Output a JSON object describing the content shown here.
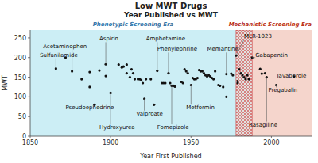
{
  "chart_data": {
    "type": "scatter",
    "title": "Low MWT Drugs",
    "subtitle": "Year Published vs MWT",
    "x_label": "Year First Published",
    "y_label": "MWT",
    "xlim": [
      1850,
      2025
    ],
    "ylim": [
      0,
      270
    ],
    "xticks": [
      1850,
      1900,
      1950,
      2000
    ],
    "yticks": [
      0,
      50,
      100,
      150,
      200,
      250
    ],
    "grid": false,
    "color": "#111111",
    "x": [
      1866,
      1872,
      1876,
      1882,
      1887,
      1887,
      1890,
      1893,
      1897,
      1897,
      1900,
      1905,
      1907,
      1908,
      1910,
      1910,
      1912,
      1913,
      1914,
      1915,
      1917,
      1918,
      1919,
      1920,
      1921,
      1922,
      1925,
      1927,
      1929,
      1932,
      1933,
      1934,
      1936,
      1937,
      1938,
      1939,
      1940,
      1944,
      1945,
      1946,
      1947,
      1948,
      1950,
      1951,
      1952,
      1953,
      1954,
      1955,
      1956,
      1957,
      1958,
      1959,
      1960,
      1961,
      1962,
      1963,
      1964,
      1965,
      1967,
      1968,
      1970,
      1972,
      1972,
      1975,
      1976,
      1978,
      1979,
      1979,
      1980,
      1981,
      1982,
      1983,
      1984,
      1985,
      1986,
      1988,
      1993,
      1994,
      1996,
      1997,
      2003,
      2014
    ],
    "values": [
      172,
      200,
      165,
      145,
      125,
      163,
      80,
      167,
      183,
      153,
      110,
      182,
      175,
      177,
      182,
      160,
      150,
      170,
      160,
      145,
      145,
      145,
      143,
      135,
      95,
      145,
      145,
      80,
      166,
      135,
      135,
      135,
      160,
      135,
      128,
      128,
      126,
      138,
      135,
      170,
      165,
      160,
      130,
      148,
      145,
      145,
      148,
      168,
      165,
      165,
      160,
      155,
      152,
      155,
      152,
      148,
      145,
      165,
      130,
      128,
      125,
      100,
      158,
      159,
      155,
      205,
      135,
      140,
      170,
      160,
      155,
      150,
      145,
      155,
      145,
      200,
      171,
      159,
      160,
      150,
      130,
      152
    ],
    "regions": [
      {
        "label": "Phenotypic Screening Era",
        "start": 1850,
        "end": 1978,
        "color": "#cceef5",
        "label_color": "#3377aa"
      },
      {
        "label": "Mechanistic Screening Era",
        "start": 1988,
        "end": 2025,
        "color": "#f5d5cc",
        "label_color": "#bb3322"
      }
    ],
    "transition": {
      "start": 1978,
      "end": 1988,
      "color": "#cc2222"
    },
    "annotations": [
      {
        "text": "Sulfanilamide",
        "x": 1866,
        "y": 172,
        "label_x": 1856,
        "label_y": 207
      },
      {
        "text": "Acetaminophen",
        "x": 1876,
        "y": 165,
        "label_x": 1858,
        "label_y": 228
      },
      {
        "text": "Aspirin",
        "x": 1897,
        "y": 183,
        "label_x": 1893,
        "label_y": 248
      },
      {
        "text": "Amphetamine",
        "x": 1929,
        "y": 166,
        "label_x": 1922,
        "label_y": 248
      },
      {
        "text": "Phenylephrine",
        "x": 1936,
        "y": 160,
        "label_x": 1929,
        "label_y": 222
      },
      {
        "text": "Memantine",
        "x": 1972,
        "y": 158,
        "label_x": 1960,
        "label_y": 222
      },
      {
        "text": "Pseudoephedrine",
        "x": 1890,
        "y": 80,
        "label_x": 1872,
        "label_y": 73
      },
      {
        "text": "Hydroxyurea",
        "x": 1900,
        "y": 110,
        "label_x": 1893,
        "label_y": 23
      },
      {
        "text": "Valproate",
        "x": 1921,
        "y": 95,
        "label_x": 1916,
        "label_y": 58
      },
      {
        "text": "Fomepizole",
        "x": 1938,
        "y": 128,
        "label_x": 1929,
        "label_y": 23
      },
      {
        "text": "Metformin",
        "x": 1950,
        "y": 130,
        "label_x": 1947,
        "label_y": 73
      },
      {
        "text": "MLR-1023",
        "x": 1978,
        "y": 205,
        "label_x": 1983,
        "label_y": 255
      },
      {
        "text": "Gabapentin",
        "x": 1988,
        "y": 200,
        "label_x": 1990,
        "label_y": 207
      },
      {
        "text": "Tavaborole",
        "x": 2014,
        "y": 152,
        "label_x": 2003,
        "label_y": 155
      },
      {
        "text": "Pregabalin",
        "x": 2003,
        "y": 130,
        "label_x": 1998,
        "label_y": 117
      },
      {
        "text": "Rasagiline",
        "x": 1997,
        "y": 150,
        "label_x": 1986,
        "label_y": 30
      }
    ]
  }
}
